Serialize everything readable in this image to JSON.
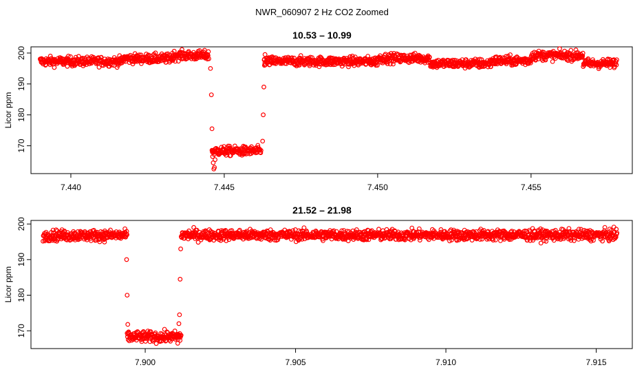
{
  "title": "NWR_060907  2 Hz CO2 Zoomed",
  "chart_data": [
    {
      "type": "scatter",
      "title": "10.53 – 10.99",
      "xlabel": "",
      "ylabel": "Licor ppm",
      "xlim": [
        7.4387,
        7.4583
      ],
      "ylim": [
        161,
        202
      ],
      "xticks": [
        7.44,
        7.445,
        7.45,
        7.455
      ],
      "xtick_labels": [
        "7.440",
        "7.445",
        "7.450",
        "7.455"
      ],
      "yticks": [
        170,
        180,
        190,
        200
      ],
      "ytick_labels": [
        "170",
        "180",
        "190",
        "200"
      ],
      "marker_color": "#ff0000",
      "grid": false,
      "legend": "none",
      "x_range": [
        7.439,
        7.4578
      ],
      "segments": [
        {
          "x0": 7.439,
          "x1": 7.4417,
          "mean": 197.3
        },
        {
          "x0": 7.4417,
          "x1": 7.4433,
          "mean": 198.2
        },
        {
          "x0": 7.4433,
          "x1": 7.4445,
          "mean": 199.2
        },
        {
          "x0": 7.4446,
          "x1": 7.4462,
          "mean": 168.3
        },
        {
          "x0": 7.4463,
          "x1": 7.45,
          "mean": 197.3
        },
        {
          "x0": 7.45,
          "x1": 7.4517,
          "mean": 198.3
        },
        {
          "x0": 7.4517,
          "x1": 7.4537,
          "mean": 196.6
        },
        {
          "x0": 7.4537,
          "x1": 7.455,
          "mean": 197.5
        },
        {
          "x0": 7.455,
          "x1": 7.4567,
          "mean": 199.2
        },
        {
          "x0": 7.4567,
          "x1": 7.4578,
          "mean": 196.6
        }
      ],
      "transition_points": [
        {
          "x": 7.44455,
          "y": 195.0
        },
        {
          "x": 7.44458,
          "y": 186.5
        },
        {
          "x": 7.4446,
          "y": 175.5
        },
        {
          "x": 7.44462,
          "y": 166.5
        },
        {
          "x": 7.44464,
          "y": 164.5
        },
        {
          "x": 7.44466,
          "y": 162.5
        },
        {
          "x": 7.44468,
          "y": 163.0
        },
        {
          "x": 7.4447,
          "y": 165.5
        },
        {
          "x": 7.44625,
          "y": 171.5
        },
        {
          "x": 7.44627,
          "y": 180.0
        },
        {
          "x": 7.44629,
          "y": 189.0
        },
        {
          "x": 7.44631,
          "y": 196.0
        },
        {
          "x": 7.44633,
          "y": 199.5
        }
      ]
    },
    {
      "type": "scatter",
      "title": "21.52 – 21.98",
      "xlabel": "",
      "ylabel": "Licor ppm",
      "xlim": [
        7.8962,
        7.9162
      ],
      "ylim": [
        165,
        201
      ],
      "xticks": [
        7.9,
        7.905,
        7.91,
        7.915
      ],
      "xtick_labels": [
        "7.900",
        "7.905",
        "7.910",
        "7.915"
      ],
      "yticks": [
        170,
        180,
        190,
        200
      ],
      "ytick_labels": [
        "170",
        "180",
        "190",
        "200"
      ],
      "marker_color": "#ff0000",
      "grid": false,
      "legend": "none",
      "x_range": [
        7.8966,
        7.9157
      ],
      "segments": [
        {
          "x0": 7.8966,
          "x1": 7.8994,
          "mean": 196.8
        },
        {
          "x0": 7.8994,
          "x1": 7.9012,
          "mean": 168.3
        },
        {
          "x0": 7.9012,
          "x1": 7.9157,
          "mean": 196.9
        }
      ],
      "transition_points": [
        {
          "x": 7.89938,
          "y": 190.0
        },
        {
          "x": 7.8994,
          "y": 180.0
        },
        {
          "x": 7.89942,
          "y": 171.8
        },
        {
          "x": 7.89944,
          "y": 169.5
        },
        {
          "x": 7.90108,
          "y": 166.5
        },
        {
          "x": 7.9011,
          "y": 169.0
        },
        {
          "x": 7.90112,
          "y": 172.0
        },
        {
          "x": 7.90114,
          "y": 174.5
        },
        {
          "x": 7.90116,
          "y": 184.5
        },
        {
          "x": 7.90118,
          "y": 193.0
        },
        {
          "x": 7.9012,
          "y": 196.5
        }
      ]
    }
  ]
}
